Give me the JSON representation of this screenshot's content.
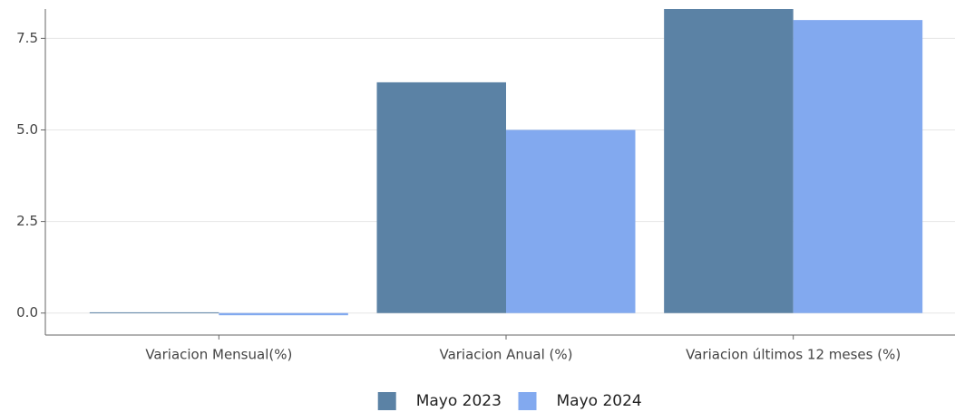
{
  "chart_data": {
    "type": "bar",
    "categories": [
      "Variacion Mensual(%)",
      "Variacion Anual (%)",
      "Variacion últimos 12 meses (%)"
    ],
    "series": [
      {
        "name": "Mayo 2023",
        "color": "#5b82a5",
        "values": [
          0.02,
          6.3,
          8.3
        ]
      },
      {
        "name": "Mayo 2024",
        "color": "#82a9ef",
        "values": [
          -0.06,
          5.0,
          8.0
        ]
      }
    ],
    "ylim": [
      -0.6,
      8.3
    ],
    "yticks": [
      {
        "value": 0,
        "label": "0.0"
      },
      2.5,
      {
        "value": 5,
        "label": "5.0"
      },
      7.5
    ],
    "grid": true,
    "legend": "bottom"
  }
}
